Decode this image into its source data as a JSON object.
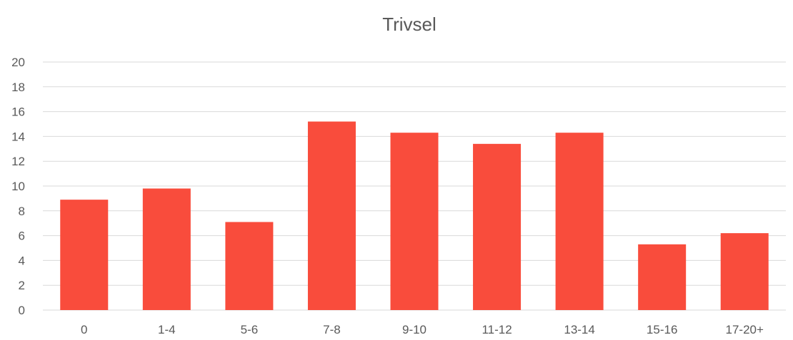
{
  "chart_data": {
    "type": "bar",
    "title": "Trivsel",
    "xlabel": "",
    "ylabel": "",
    "categories": [
      "0",
      "1-4",
      "5-6",
      "7-8",
      "9-10",
      "11-12",
      "13-14",
      "15-16",
      "17-20+"
    ],
    "values": [
      8.9,
      9.8,
      7.1,
      15.2,
      14.3,
      13.4,
      14.3,
      5.3,
      6.2
    ],
    "ylim": [
      0,
      20
    ],
    "yticks": [
      "0",
      "2",
      "4",
      "6",
      "8",
      "10",
      "12",
      "14",
      "16",
      "18",
      "20"
    ],
    "grid": true,
    "legend": "none",
    "bar_color": "#f94c3c",
    "grid_color": "#d9d9d9",
    "text_color": "#595959"
  }
}
